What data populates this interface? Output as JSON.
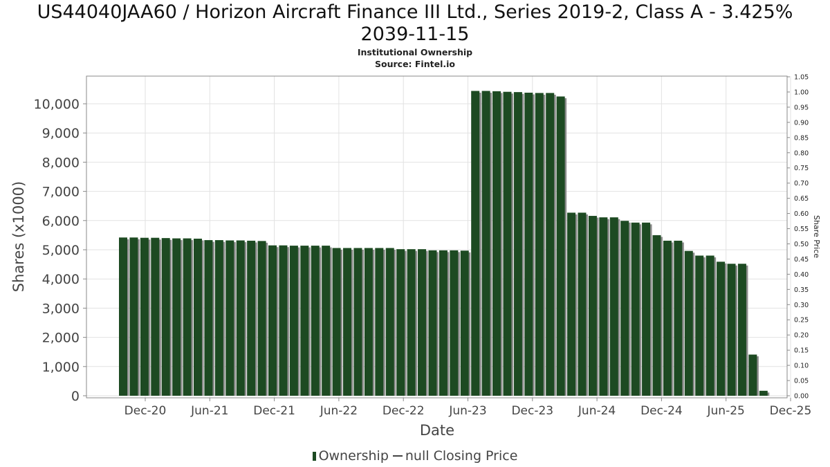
{
  "chart_data": {
    "type": "bar",
    "title_line1": "US44040JAA60 / Horizon Aircraft Finance III Ltd., Series 2019-2, Class A - 3.425%",
    "title_line2": "2039-11-15",
    "subtitle1": "Institutional Ownership",
    "subtitle2": "Source: Fintel.io",
    "xlabel": "Date",
    "ylabel": "Shares (x1000)",
    "y2label": "Share Price",
    "ylim": [
      0,
      10950
    ],
    "y2lim": [
      0,
      1.05
    ],
    "grid": true,
    "legend_position": "bottom",
    "x_ticks": [
      "Dec-20",
      "Jun-21",
      "Dec-21",
      "Jun-22",
      "Dec-22",
      "Jun-23",
      "Dec-23",
      "Jun-24",
      "Dec-24",
      "Jun-25",
      "Dec-25"
    ],
    "y_ticks": [
      "0",
      "1,000",
      "2,000",
      "3,000",
      "4,000",
      "5,000",
      "6,000",
      "7,000",
      "8,000",
      "9,000",
      "10,000"
    ],
    "y2_ticks": [
      "0.00",
      "0.05",
      "0.10",
      "0.15",
      "0.20",
      "0.25",
      "0.30",
      "0.35",
      "0.40",
      "0.45",
      "0.50",
      "0.55",
      "0.60",
      "0.65",
      "0.70",
      "0.75",
      "0.80",
      "0.85",
      "0.90",
      "0.95",
      "1.00",
      "1.05"
    ],
    "series": [
      {
        "name": "Ownership",
        "color": "#1d4a22",
        "values": [
          5420,
          5420,
          5410,
          5410,
          5400,
          5390,
          5390,
          5380,
          5330,
          5330,
          5320,
          5320,
          5310,
          5300,
          5150,
          5150,
          5140,
          5140,
          5140,
          5140,
          5060,
          5060,
          5060,
          5060,
          5060,
          5060,
          5020,
          5020,
          5020,
          4980,
          4980,
          4980,
          4970,
          10440,
          10440,
          10430,
          10410,
          10400,
          10380,
          10370,
          10370,
          10250,
          6270,
          6270,
          6160,
          6110,
          6110,
          5990,
          5930,
          5930,
          5500,
          5310,
          5310,
          4960,
          4800,
          4800,
          4590,
          4520,
          4520,
          1410,
          170
        ]
      },
      {
        "name": "null Closing Price",
        "color": "#444444",
        "values": []
      }
    ],
    "legend": [
      "Ownership",
      "null Closing Price"
    ]
  }
}
